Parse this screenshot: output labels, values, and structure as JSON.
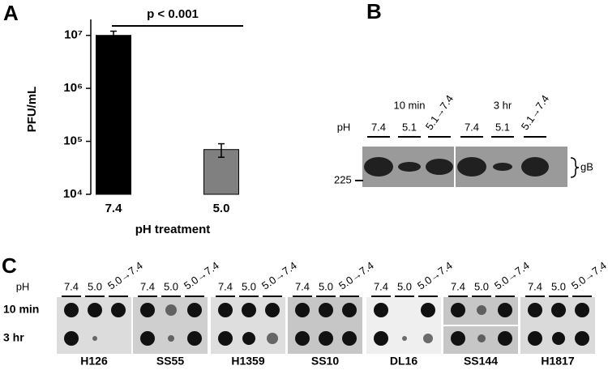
{
  "chart_data": {
    "type": "bar",
    "panel_label": "A",
    "annotation": "p < 0.001",
    "y_label": "PFU/mL",
    "x_label": "pH treatment",
    "categories": [
      "7.4",
      "5.0"
    ],
    "values": [
      10000000,
      70000
    ],
    "errors": [
      2000000,
      20000
    ],
    "colors": [
      "#000000",
      "#808080"
    ],
    "log_y": true,
    "ylim": [
      10000,
      20000000
    ],
    "yticks": [
      {
        "value": 10000,
        "label": "10⁴"
      },
      {
        "value": 100000,
        "label": "10⁵"
      },
      {
        "value": 1000000,
        "label": "10⁶"
      },
      {
        "value": 10000000,
        "label": "10⁷"
      }
    ]
  },
  "panel_b": {
    "label": "B",
    "times": [
      "10 min",
      "3 hr"
    ],
    "ph_label": "pH",
    "lanes": [
      "7.4",
      "5.1",
      "5.1→7.4",
      "7.4",
      "5.1",
      "5.1→7.4"
    ],
    "marker": "225",
    "band_label": "gB"
  },
  "panel_c": {
    "label": "C",
    "ph_label": "pH",
    "rows": [
      "10 min",
      "3 hr"
    ],
    "lanes": [
      "7.4",
      "5.0",
      "5.0→7.4"
    ],
    "groups": [
      "H126",
      "SS55",
      "H1359",
      "SS10",
      "DL16",
      "SS144",
      "H1817"
    ]
  }
}
